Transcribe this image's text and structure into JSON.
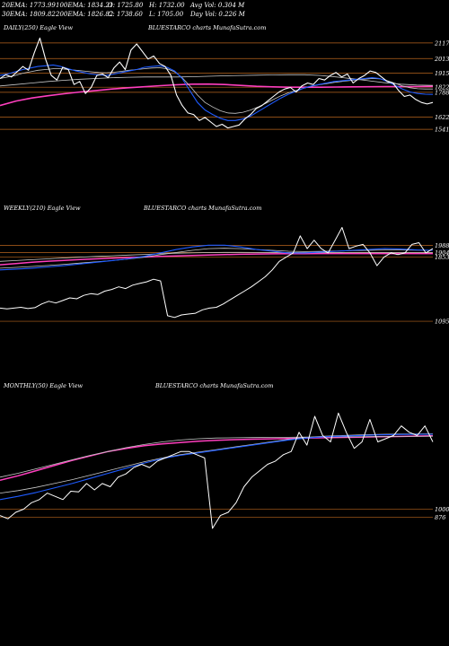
{
  "header": {
    "row1": [
      "20EMA: 1773.99",
      "100EMA: 1834.21",
      "O: 1725.80",
      "H: 1732.00",
      "Avg Vol: 0.304 M"
    ],
    "row2": [
      "30EMA: 1809.82",
      "200EMA: 1826.82",
      "C: 1738.60",
      "L: 1705.00",
      "Day Vol: 0.226 M"
    ]
  },
  "colors": {
    "background": "#000000",
    "price": "#ffffff",
    "ema_fast": "#1e5bff",
    "ema_slow": "#ff3fbf",
    "ema_mid": "#c8c8c8",
    "grid": "#b8651e"
  },
  "chart_data": [
    {
      "type": "line",
      "panel_label": "DAILY(250) Eagle  View",
      "watermark": "BLUESTARCO charts MunafaSutra.com",
      "ylim": [
        1500,
        2200
      ],
      "y_ticks": [
        2117,
        2013,
        1915,
        1822,
        1788,
        1622,
        1541
      ],
      "series": [
        {
          "name": "Close",
          "color": "#ffffff",
          "width": 1.1,
          "values": [
            1880,
            1905,
            1890,
            1925,
            1960,
            1935,
            2050,
            2150,
            2010,
            1900,
            1870,
            1955,
            1940,
            1840,
            1860,
            1780,
            1820,
            1900,
            1910,
            1885,
            1950,
            1990,
            1940,
            2070,
            2110,
            2060,
            2010,
            2030,
            1980,
            1960,
            1900,
            1770,
            1700,
            1650,
            1640,
            1600,
            1620,
            1590,
            1560,
            1575,
            1550,
            1560,
            1570,
            1610,
            1640,
            1680,
            1700,
            1730,
            1760,
            1790,
            1810,
            1820,
            1790,
            1830,
            1850,
            1840,
            1880,
            1870,
            1900,
            1920,
            1890,
            1910,
            1850,
            1880,
            1900,
            1930,
            1920,
            1890,
            1860,
            1850,
            1800,
            1760,
            1770,
            1740,
            1720,
            1710,
            1720
          ]
        },
        {
          "name": "20EMA",
          "color": "#1e5bff",
          "width": 1.1,
          "values": [
            1900,
            1910,
            1925,
            1940,
            1950,
            1960,
            1965,
            1970,
            1960,
            1945,
            1930,
            1920,
            1910,
            1905,
            1900,
            1910,
            1920,
            1930,
            1940,
            1955,
            1960,
            1965,
            1955,
            1930,
            1880,
            1800,
            1720,
            1670,
            1640,
            1615,
            1600,
            1600,
            1610,
            1630,
            1660,
            1690,
            1720,
            1750,
            1775,
            1795,
            1815,
            1830,
            1840,
            1850,
            1860,
            1865,
            1870,
            1875,
            1880,
            1885,
            1880,
            1860,
            1835,
            1810,
            1790,
            1780,
            1775,
            1774
          ]
        },
        {
          "name": "30EMA",
          "color": "#c8c8c8",
          "width": 0.8,
          "values": [
            1880,
            1890,
            1900,
            1915,
            1925,
            1935,
            1940,
            1945,
            1945,
            1940,
            1935,
            1930,
            1925,
            1920,
            1918,
            1922,
            1928,
            1935,
            1940,
            1945,
            1950,
            1952,
            1945,
            1925,
            1885,
            1830,
            1770,
            1720,
            1690,
            1665,
            1650,
            1648,
            1655,
            1670,
            1690,
            1715,
            1740,
            1765,
            1785,
            1800,
            1815,
            1828,
            1838,
            1846,
            1854,
            1860,
            1866,
            1871,
            1876,
            1880,
            1878,
            1865,
            1848,
            1830,
            1818,
            1812,
            1810,
            1810
          ]
        },
        {
          "name": "100EMA",
          "color": "#c8c8c8",
          "width": 0.8,
          "values": [
            1830,
            1840,
            1850,
            1860,
            1868,
            1875,
            1880,
            1885,
            1888,
            1890,
            1890,
            1890,
            1892,
            1895,
            1898,
            1900,
            1902,
            1904,
            1905,
            1905,
            1900,
            1890,
            1878,
            1865,
            1852,
            1842,
            1836,
            1834
          ]
        },
        {
          "name": "200EMA",
          "color": "#ff3fbf",
          "width": 1.6,
          "values": [
            1700,
            1730,
            1750,
            1765,
            1778,
            1790,
            1800,
            1810,
            1818,
            1825,
            1832,
            1838,
            1842,
            1843,
            1840,
            1834,
            1828,
            1824,
            1822,
            1822,
            1822,
            1823,
            1824,
            1825,
            1826,
            1826,
            1826,
            1827
          ]
        }
      ]
    },
    {
      "type": "line",
      "panel_label": "WEEKLY(210) Eagle  View",
      "watermark": "BLUESTARCO charts MunafaSutra.com",
      "ylim": [
        800,
        2300
      ],
      "y_ticks": [
        1988,
        1904,
        1853,
        1095
      ],
      "series": [
        {
          "name": "Close",
          "color": "#ffffff",
          "width": 1.0,
          "values": [
            1250,
            1240,
            1250,
            1260,
            1245,
            1255,
            1300,
            1330,
            1310,
            1340,
            1370,
            1360,
            1400,
            1420,
            1410,
            1450,
            1470,
            1500,
            1480,
            1520,
            1540,
            1560,
            1590,
            1570,
            1160,
            1140,
            1170,
            1180,
            1190,
            1230,
            1250,
            1260,
            1300,
            1350,
            1400,
            1450,
            1500,
            1560,
            1620,
            1700,
            1800,
            1850,
            1900,
            2100,
            1950,
            2050,
            1950,
            1900,
            2050,
            2200,
            1950,
            1980,
            2000,
            1900,
            1750,
            1850,
            1900,
            1880,
            1900,
            2000,
            2020,
            1900,
            1950
          ]
        },
        {
          "name": "20EMA",
          "color": "#1e5bff",
          "width": 1.1,
          "values": [
            1700,
            1710,
            1720,
            1735,
            1750,
            1770,
            1790,
            1810,
            1830,
            1860,
            1900,
            1940,
            1970,
            1990,
            1990,
            1970,
            1940,
            1920,
            1900,
            1900,
            1910,
            1920,
            1930,
            1940,
            1950,
            1945,
            1935,
            1930
          ]
        },
        {
          "name": "30EMA",
          "color": "#c8c8c8",
          "width": 0.8,
          "values": [
            1720,
            1730,
            1740,
            1752,
            1765,
            1780,
            1795,
            1810,
            1828,
            1850,
            1878,
            1905,
            1930,
            1950,
            1955,
            1950,
            1940,
            1930,
            1920,
            1915,
            1918,
            1922,
            1926,
            1930,
            1935,
            1935,
            1932,
            1930
          ]
        },
        {
          "name": "100EMA",
          "color": "#c8c8c8",
          "width": 0.8,
          "values": [
            1800,
            1810,
            1820,
            1830,
            1840,
            1850,
            1858,
            1866,
            1874,
            1882,
            1890,
            1896,
            1900,
            1904,
            1906,
            1906,
            1905,
            1904,
            1904,
            1904,
            1904,
            1904,
            1905,
            1905,
            1905,
            1905,
            1904,
            1904
          ]
        },
        {
          "name": "200EMA",
          "color": "#ff3fbf",
          "width": 1.5,
          "values": [
            1760,
            1775,
            1790,
            1802,
            1812,
            1822,
            1830,
            1838,
            1845,
            1852,
            1858,
            1864,
            1870,
            1875,
            1880,
            1884,
            1887,
            1889,
            1890,
            1891,
            1892,
            1892,
            1892,
            1892,
            1892,
            1892,
            1892,
            1892
          ]
        }
      ]
    },
    {
      "type": "line",
      "panel_label": "MONTHLY(50) Eagle  View",
      "watermark": "BLUESTARCO charts MunafaSutra.com",
      "ylim": [
        600,
        2800
      ],
      "y_ticks": [
        1000,
        876
      ],
      "series": [
        {
          "name": "Close",
          "color": "#ffffff",
          "width": 1.0,
          "values": [
            900,
            850,
            950,
            1000,
            1100,
            1150,
            1250,
            1200,
            1150,
            1280,
            1270,
            1400,
            1300,
            1400,
            1350,
            1500,
            1550,
            1650,
            1700,
            1650,
            1750,
            1800,
            1850,
            1900,
            1900,
            1850,
            1800,
            700,
            900,
            950,
            1100,
            1350,
            1500,
            1600,
            1700,
            1750,
            1850,
            1900,
            2200,
            2000,
            2450,
            2150,
            2050,
            2500,
            2200,
            1950,
            2050,
            2400,
            2050,
            2100,
            2150,
            2300,
            2200,
            2150,
            2300,
            2050
          ]
        },
        {
          "name": "20EMA",
          "color": "#1e5bff",
          "width": 1.1,
          "values": [
            1150,
            1200,
            1260,
            1330,
            1400,
            1480,
            1560,
            1640,
            1720,
            1790,
            1840,
            1880,
            1920,
            1960,
            2000,
            2040,
            2080,
            2110,
            2130,
            2140,
            2150,
            2160,
            2165,
            2168,
            2170
          ]
        },
        {
          "name": "30EMA",
          "color": "#c8c8c8",
          "width": 0.8,
          "values": [
            1250,
            1290,
            1340,
            1400,
            1460,
            1530,
            1600,
            1670,
            1740,
            1800,
            1850,
            1890,
            1930,
            1970,
            2010,
            2050,
            2090,
            2120,
            2140,
            2150,
            2160,
            2168,
            2172,
            2175,
            2177
          ]
        },
        {
          "name": "100EMA",
          "color": "#c8c8c8",
          "width": 0.8,
          "values": [
            1500,
            1560,
            1630,
            1700,
            1770,
            1840,
            1900,
            1960,
            2010,
            2050,
            2080,
            2100,
            2110,
            2115,
            2118,
            2120,
            2122,
            2124,
            2126,
            2128,
            2130,
            2132,
            2134,
            2136,
            2138
          ]
        },
        {
          "name": "200EMA",
          "color": "#ff3fbf",
          "width": 1.5,
          "values": [
            1450,
            1520,
            1600,
            1680,
            1760,
            1830,
            1900,
            1950,
            1990,
            2020,
            2040,
            2060,
            2075,
            2085,
            2092,
            2098,
            2104,
            2110,
            2115,
            2120,
            2125,
            2130,
            2135,
            2140,
            2145
          ]
        }
      ]
    }
  ]
}
